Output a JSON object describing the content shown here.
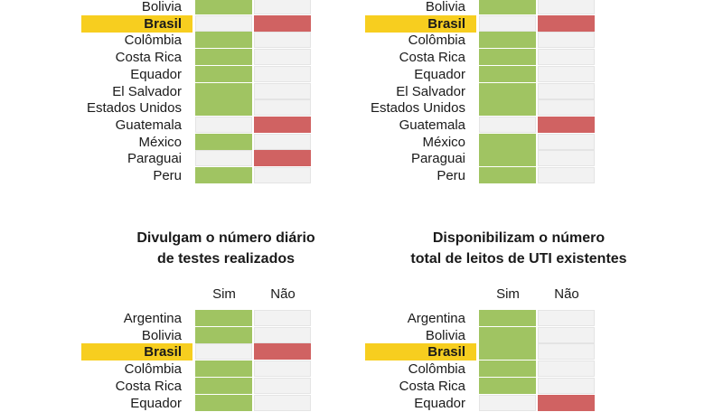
{
  "chart_data": [
    {
      "type": "table",
      "title": [],
      "columns": [],
      "rows": [
        {
          "country": "Bolivia",
          "value": "Sim"
        },
        {
          "country": "Brasil",
          "value": "Não",
          "highlight": true
        },
        {
          "country": "Colômbia",
          "value": "Sim"
        },
        {
          "country": "Costa Rica",
          "value": "Sim"
        },
        {
          "country": "Equador",
          "value": "Sim"
        },
        {
          "country": "El Salvador",
          "value": "Sim"
        },
        {
          "country": "Estados Unidos",
          "value": "Sim"
        },
        {
          "country": "Guatemala",
          "value": "Não"
        },
        {
          "country": "México",
          "value": "Sim"
        },
        {
          "country": "Paraguai",
          "value": "Não"
        },
        {
          "country": "Peru",
          "value": "Sim"
        }
      ]
    },
    {
      "type": "table",
      "title": [],
      "columns": [],
      "rows": [
        {
          "country": "Bolivia",
          "value": "Sim"
        },
        {
          "country": "Brasil",
          "value": "Não",
          "highlight": true
        },
        {
          "country": "Colômbia",
          "value": "Sim"
        },
        {
          "country": "Costa Rica",
          "value": "Sim"
        },
        {
          "country": "Equador",
          "value": "Sim"
        },
        {
          "country": "El Salvador",
          "value": "Sim"
        },
        {
          "country": "Estados Unidos",
          "value": "Sim"
        },
        {
          "country": "Guatemala",
          "value": "Não"
        },
        {
          "country": "México",
          "value": "Sim"
        },
        {
          "country": "Paraguai",
          "value": "Sim"
        },
        {
          "country": "Peru",
          "value": "Sim"
        }
      ]
    },
    {
      "type": "table",
      "title": [
        "Divulgam o número diário",
        "de testes realizados"
      ],
      "columns": [
        "Sim",
        "Não"
      ],
      "rows": [
        {
          "country": "Argentina",
          "value": "Sim"
        },
        {
          "country": "Bolivia",
          "value": "Sim"
        },
        {
          "country": "Brasil",
          "value": "Não",
          "highlight": true
        },
        {
          "country": "Colômbia",
          "value": "Sim"
        },
        {
          "country": "Costa Rica",
          "value": "Sim"
        },
        {
          "country": "Equador",
          "value": "Sim"
        }
      ]
    },
    {
      "type": "table",
      "title": [
        "Disponibilizam o número",
        "total de leitos de UTI existentes"
      ],
      "columns": [
        "Sim",
        "Não"
      ],
      "rows": [
        {
          "country": "Argentina",
          "value": "Sim"
        },
        {
          "country": "Bolivia",
          "value": "Sim"
        },
        {
          "country": "Brasil",
          "value": "Sim",
          "highlight": true
        },
        {
          "country": "Colômbia",
          "value": "Sim"
        },
        {
          "country": "Costa Rica",
          "value": "Sim"
        },
        {
          "country": "Equador",
          "value": "Não"
        }
      ]
    }
  ],
  "colors": {
    "sim": "#a0c462",
    "nao": "#d06262",
    "empty": "#f2f2f2",
    "highlight": "#f7ce1f"
  }
}
